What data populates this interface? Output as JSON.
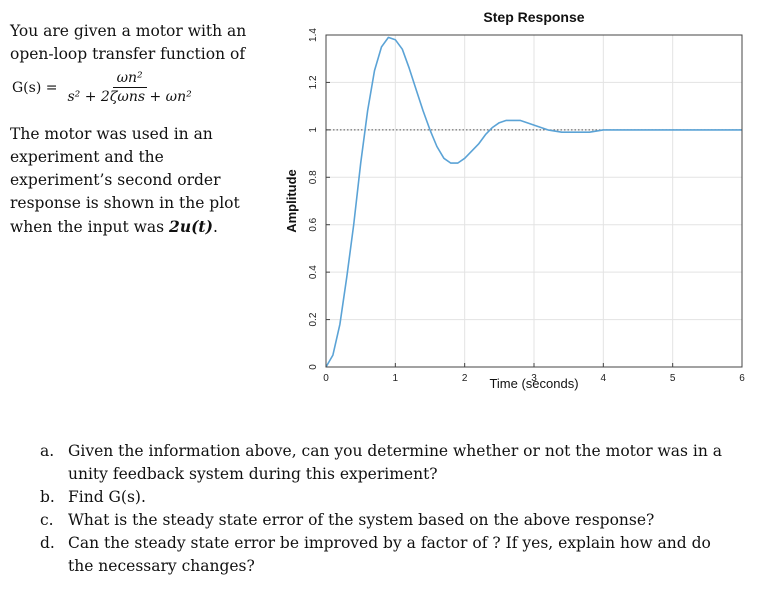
{
  "intro_text": "You are given a motor with an open-loop transfer function of",
  "formula": {
    "lhs": "G(s) =",
    "numerator": "ωn²",
    "denominator": "s² + 2ζωns + ωn²"
  },
  "paragraph": {
    "text": "The motor was used in an experiment and the experiment’s second order response is shown in the plot when the input was ",
    "emphasis": "2u(t)",
    "end": "."
  },
  "chart_data": {
    "type": "line",
    "title": "Step Response",
    "xlabel": "Time (seconds)",
    "ylabel": "Amplitude",
    "xlim": [
      0,
      6
    ],
    "ylim": [
      0,
      1.4
    ],
    "xticks": [
      "0",
      "1",
      "2",
      "3",
      "4",
      "5",
      "6"
    ],
    "yticks": [
      "0",
      "0.2",
      "0.4",
      "0.6",
      "0.8",
      "1",
      "1.2",
      "1.4"
    ],
    "grid": true,
    "reference_line": 1.0,
    "series": [
      {
        "x": [
          0,
          0.1,
          0.2,
          0.3,
          0.4,
          0.5,
          0.6,
          0.7,
          0.8,
          0.9,
          1.0,
          1.1,
          1.2,
          1.3,
          1.4,
          1.5,
          1.6,
          1.7,
          1.8,
          1.9,
          2.0,
          2.1,
          2.2,
          2.3,
          2.4,
          2.5,
          2.6,
          2.7,
          2.8,
          2.9,
          3.0,
          3.2,
          3.4,
          3.6,
          3.8,
          4.0,
          4.2,
          4.4,
          4.6,
          4.8,
          5.0,
          5.5,
          6.0
        ],
        "y": [
          0,
          0.05,
          0.18,
          0.38,
          0.6,
          0.86,
          1.08,
          1.25,
          1.35,
          1.39,
          1.38,
          1.34,
          1.26,
          1.17,
          1.08,
          1.0,
          0.93,
          0.88,
          0.86,
          0.86,
          0.88,
          0.91,
          0.94,
          0.98,
          1.01,
          1.03,
          1.04,
          1.04,
          1.04,
          1.03,
          1.02,
          1.0,
          0.99,
          0.99,
          0.99,
          1.0,
          1.0,
          1.0,
          1.0,
          1.0,
          1.0,
          1.0,
          1.0
        ],
        "color": "#5ba3d6"
      }
    ]
  },
  "questions": [
    {
      "marker": "a.",
      "text": "Given the information above, can you determine whether or not the motor was in a unity feedback system during this experiment?"
    },
    {
      "marker": "b.",
      "text": "Find G(s)."
    },
    {
      "marker": "c.",
      "text": "What is the steady state error of the system based on the above response?"
    },
    {
      "marker": "d.",
      "text": "Can the steady state error be improved by a factor of ? If yes, explain how and do the necessary changes?"
    }
  ]
}
